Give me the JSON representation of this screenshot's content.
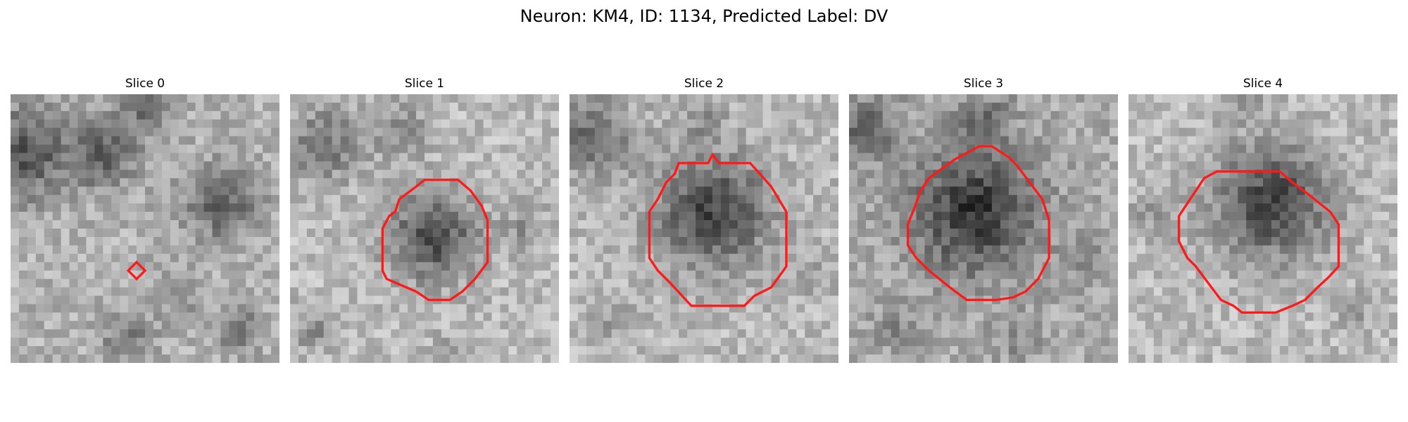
{
  "figure": {
    "title": "Neuron: KM4, ID: 1134, Predicted Label: DV"
  },
  "panels": [
    {
      "title": "Slice 0"
    },
    {
      "title": "Slice 1"
    },
    {
      "title": "Slice 2"
    },
    {
      "title": "Slice 3"
    },
    {
      "title": "Slice 4"
    }
  ],
  "colors": {
    "contour": "#ff1a1a",
    "background": "#ffffff"
  }
}
